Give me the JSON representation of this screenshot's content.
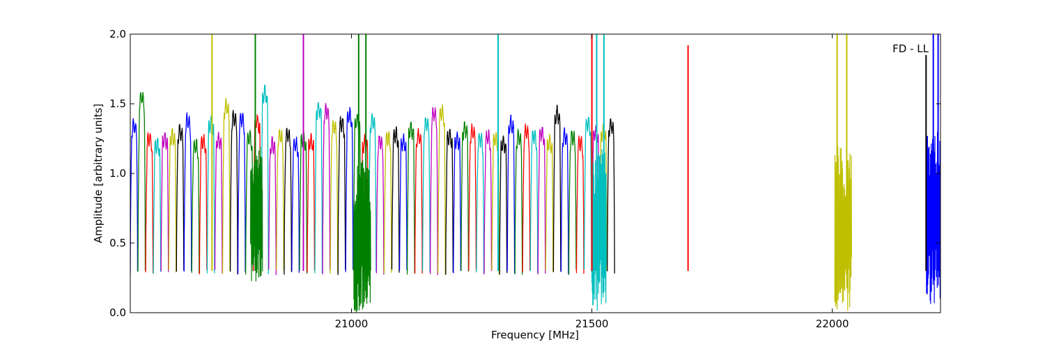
{
  "chart_data": {
    "type": "line",
    "title": "",
    "annotation": "FD - LL",
    "xlabel": "Frequency [MHz]",
    "ylabel": "Amplitude [arbitrary units]",
    "xlim": [
      20540,
      22225
    ],
    "ylim": [
      0.0,
      2.0
    ],
    "x_ticks": [
      21000,
      21500,
      22000
    ],
    "x_tick_labels": [
      "21000",
      "21500",
      "22000"
    ],
    "y_ticks": [
      0.0,
      0.5,
      1.0,
      1.5,
      2.0
    ],
    "y_tick_labels": [
      "0.0",
      "0.5",
      "1.0",
      "1.5",
      "2.0"
    ],
    "grid": false,
    "legend": "none",
    "channel_width_mhz": 16,
    "channel_start_mhz": 20540,
    "color_cycle": [
      "#0000ff",
      "#008000",
      "#ff0000",
      "#00bfbf",
      "#bf00bf",
      "#bfbf00",
      "#000000"
    ],
    "channel_peaks": [
      1.34,
      1.55,
      1.25,
      1.21,
      1.25,
      1.27,
      1.3,
      1.38,
      1.2,
      1.23,
      1.36,
      1.24,
      1.48,
      1.4,
      1.39,
      1.26,
      1.38,
      1.58,
      1.21,
      1.27,
      1.28,
      1.21,
      1.25,
      1.23,
      1.47,
      1.45,
      1.34,
      1.36,
      1.42,
      1.38,
      1.22,
      1.38,
      1.23,
      1.26,
      1.28,
      1.23,
      1.32,
      1.27,
      1.36,
      1.43,
      1.44,
      1.27,
      1.25,
      1.32,
      1.3,
      1.25,
      1.26,
      1.25,
      1.22,
      1.36,
      1.26,
      1.3,
      1.27,
      1.29,
      1.22,
      1.43,
      1.27,
      1.26,
      1.22,
      1.36,
      1.3,
      1.3,
      1.35
    ],
    "spikes": [
      {
        "x": 20710,
        "y": 2.0,
        "color": "#bfbf00"
      },
      {
        "x": 20800,
        "y": 2.0,
        "color": "#008000"
      },
      {
        "x": 20900,
        "y": 2.0,
        "color": "#bf00bf"
      },
      {
        "x": 21015,
        "y": 2.0,
        "color": "#008000"
      },
      {
        "x": 21030,
        "y": 2.0,
        "color": "#008000"
      },
      {
        "x": 21305,
        "y": 2.0,
        "color": "#00bfbf"
      },
      {
        "x": 21500,
        "y": 2.0,
        "color": "#ff0000"
      },
      {
        "x": 21510,
        "y": 2.0,
        "color": "#00bfbf"
      },
      {
        "x": 21525,
        "y": 2.0,
        "color": "#00bfbf"
      },
      {
        "x": 21700,
        "y": 1.92,
        "color": "#ff0000"
      },
      {
        "x": 22010,
        "y": 2.0,
        "color": "#bfbf00"
      },
      {
        "x": 22030,
        "y": 2.0,
        "color": "#bfbf00"
      },
      {
        "x": 22195,
        "y": 1.85,
        "color": "#000000"
      },
      {
        "x": 22210,
        "y": 2.0,
        "color": "#0000ff"
      },
      {
        "x": 22220,
        "y": 2.0,
        "color": "#0000ff"
      }
    ],
    "noise_bands": [
      {
        "x0": 20790,
        "x1": 20815,
        "ymin": 0.22,
        "ymax": 1.2,
        "color": "#008000"
      },
      {
        "x0": 21005,
        "x1": 21040,
        "ymin": 0.0,
        "ymax": 1.1,
        "color": "#008000"
      },
      {
        "x0": 21500,
        "x1": 21530,
        "ymin": 0.0,
        "ymax": 1.2,
        "color": "#00bfbf"
      },
      {
        "x0": 22005,
        "x1": 22040,
        "ymin": 0.0,
        "ymax": 1.2,
        "color": "#bfbf00"
      },
      {
        "x0": 22195,
        "x1": 22225,
        "ymin": 0.05,
        "ymax": 1.3,
        "color": "#0000ff"
      }
    ]
  }
}
